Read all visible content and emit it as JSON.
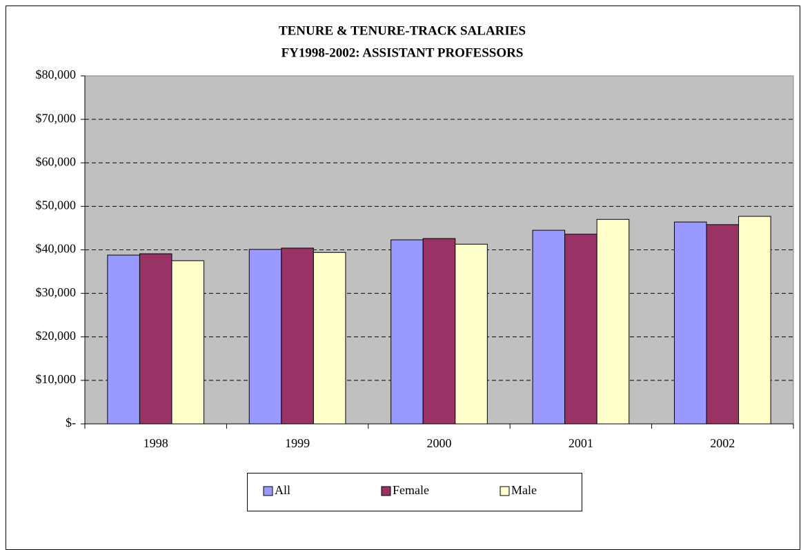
{
  "chart_data": {
    "type": "bar",
    "title": "TENURE & TENURE-TRACK SALARIES",
    "subtitle": "FY1998-2002:  ASSISTANT PROFESSORS",
    "categories": [
      "1998",
      "1999",
      "2000",
      "2001",
      "2002"
    ],
    "series": [
      {
        "name": "All",
        "color": "#9999ff",
        "values": [
          38800,
          40100,
          42300,
          44500,
          46400
        ]
      },
      {
        "name": "Female",
        "color": "#993366",
        "values": [
          39100,
          40400,
          42600,
          43600,
          45800
        ]
      },
      {
        "name": "Male",
        "color": "#ffffcc",
        "values": [
          37500,
          39400,
          41300,
          47000,
          47700
        ]
      }
    ],
    "ylim": [
      0,
      80000
    ],
    "yticks": [
      {
        "value": 0,
        "label": "$-"
      },
      {
        "value": 10000,
        "label": "$10,000"
      },
      {
        "value": 20000,
        "label": "$20,000"
      },
      {
        "value": 30000,
        "label": "$30,000"
      },
      {
        "value": 40000,
        "label": "$40,000"
      },
      {
        "value": 50000,
        "label": "$50,000"
      },
      {
        "value": 60000,
        "label": "$60,000"
      },
      {
        "value": 70000,
        "label": "$70,000"
      },
      {
        "value": 80000,
        "label": "$80,000"
      }
    ],
    "grid": true,
    "legend": "bottom"
  }
}
